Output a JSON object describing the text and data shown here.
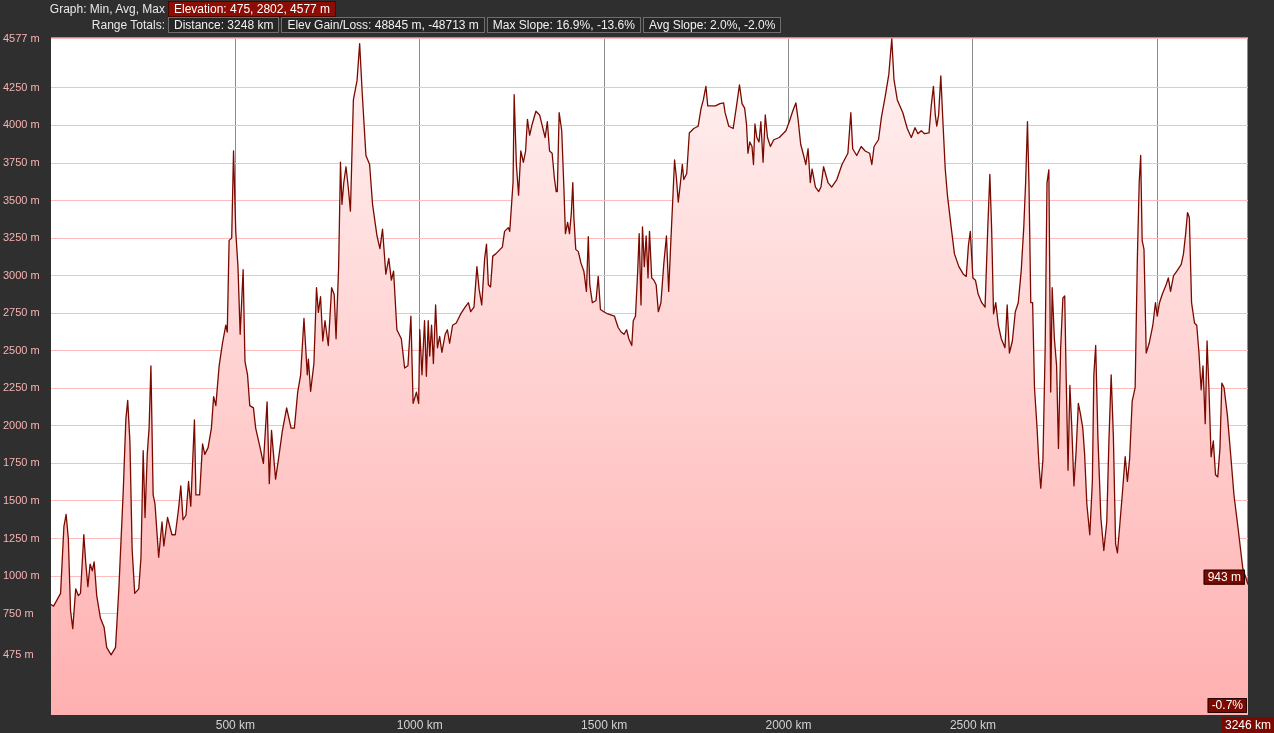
{
  "chart_data": {
    "type": "area",
    "title": "Graph: Min, Avg, Max",
    "subtitle": "Elevation: 475, 2802, 4577 m",
    "annotations": [
      "Range Totals:",
      "Distance: 3248 km",
      "Elev Gain/Loss: 48845 m, -48713 m",
      "Max Slope: 16.9%, -13.6%",
      "Avg Slope: 2.0%, -2.0%",
      {
        "text": "943 m",
        "x": 3246,
        "y": 943
      },
      {
        "text": "-0.7%",
        "x": 3246
      }
    ],
    "color": "#7a0a00",
    "grid": true,
    "xlim": [
      0,
      3246
    ],
    "xticks": [
      {
        "value": 500,
        "label": "500 km"
      },
      {
        "value": 1000,
        "label": "1000 km"
      },
      {
        "value": 1500,
        "label": "1500 km"
      },
      {
        "value": 2000,
        "label": "2000 km"
      },
      {
        "value": 2500,
        "label": "2500 km"
      },
      {
        "value": 3000,
        "label": null
      },
      {
        "value": 3246,
        "label": "3246 km"
      }
    ],
    "ylim": [
      75,
      4585
    ],
    "yticks": [
      {
        "value": 475,
        "label": "475 m"
      },
      {
        "value": 750,
        "label": "750 m"
      },
      {
        "value": 1000,
        "label": "1000 m"
      },
      {
        "value": 1250,
        "label": "1250 m"
      },
      {
        "value": 1500,
        "label": "1500 m"
      },
      {
        "value": 1750,
        "label": "1750 m"
      },
      {
        "value": 2000,
        "label": "2000 m"
      },
      {
        "value": 2250,
        "label": "2250 m"
      },
      {
        "value": 2500,
        "label": "2500 m"
      },
      {
        "value": 2750,
        "label": "2750 m"
      },
      {
        "value": 3000,
        "label": "3000 m"
      },
      {
        "value": 3250,
        "label": "3250 m"
      },
      {
        "value": 3500,
        "label": "3500 m"
      },
      {
        "value": 3750,
        "label": "3750 m"
      },
      {
        "value": 4000,
        "label": "4000 m"
      },
      {
        "value": 4250,
        "label": "4250 m"
      },
      {
        "value": 4577,
        "label": "4577 m"
      }
    ],
    "x": [
      0,
      7,
      26,
      35,
      41,
      47,
      53,
      59,
      67,
      74,
      80,
      89,
      94,
      100,
      106,
      112,
      117,
      124,
      134,
      144,
      151,
      163,
      175,
      184,
      196,
      203,
      208,
      214,
      220,
      227,
      238,
      244,
      250,
      255,
      261,
      266,
      271,
      277,
      282,
      292,
      301,
      306,
      316,
      328,
      337,
      346,
      352,
      358,
      366,
      373,
      379,
      389,
      393,
      403,
      411,
      417,
      426,
      435,
      441,
      447,
      456,
      465,
      474,
      478,
      483,
      490,
      495,
      501,
      507,
      513,
      521,
      526,
      533,
      539,
      549,
      555,
      567,
      576,
      586,
      592,
      598,
      609,
      617,
      627,
      639,
      651,
      660,
      669,
      677,
      686,
      695,
      698,
      704,
      713,
      720,
      725,
      731,
      737,
      743,
      752,
      761,
      768,
      773,
      780,
      785,
      789,
      794,
      800,
      806,
      812,
      820,
      830,
      837,
      844,
      854,
      864,
      872,
      884,
      892,
      899,
      908,
      916,
      923,
      929,
      938,
      950,
      959,
      968,
      976,
      982,
      991,
      997,
      1000,
      1006,
      1013,
      1018,
      1023,
      1027,
      1032,
      1037,
      1043,
      1048,
      1054,
      1060,
      1069,
      1075,
      1081,
      1089,
      1099,
      1111,
      1123,
      1132,
      1138,
      1147,
      1155,
      1161,
      1168,
      1176,
      1181,
      1186,
      1192,
      1198,
      1206,
      1224,
      1230,
      1240,
      1244,
      1249,
      1253,
      1256,
      1262,
      1268,
      1274,
      1281,
      1287,
      1292,
      1298,
      1305,
      1315,
      1325,
      1334,
      1340,
      1346,
      1352,
      1359,
      1365,
      1370,
      1373,
      1378,
      1385,
      1391,
      1395,
      1401,
      1406,
      1411,
      1415,
      1418,
      1423,
      1430,
      1437,
      1445,
      1452,
      1457,
      1461,
      1468,
      1478,
      1484,
      1490,
      1499,
      1510,
      1528,
      1538,
      1546,
      1554,
      1561,
      1567,
      1575,
      1579,
      1585,
      1591,
      1595,
      1600,
      1604,
      1609,
      1614,
      1619,
      1623,
      1629,
      1635,
      1641,
      1647,
      1654,
      1662,
      1669,
      1675,
      1681,
      1685,
      1691,
      1696,
      1701,
      1707,
      1712,
      1716,
      1724,
      1731,
      1743,
      1755,
      1763,
      1769,
      1776,
      1781,
      1790,
      1802,
      1814,
      1824,
      1828,
      1838,
      1850,
      1859,
      1867,
      1874,
      1881,
      1886,
      1890,
      1895,
      1901,
      1905,
      1909,
      1914,
      1920,
      1925,
      1931,
      1937,
      1943,
      1951,
      1960,
      1975,
      1993,
      2002,
      2012,
      2020,
      2026,
      2033,
      2041,
      2047,
      2053,
      2059,
      2064,
      2073,
      2082,
      2088,
      2095,
      2107,
      2117,
      2131,
      2145,
      2161,
      2169,
      2174,
      2185,
      2197,
      2208,
      2220,
      2226,
      2232,
      2244,
      2252,
      2262,
      2272,
      2280,
      2286,
      2295,
      2310,
      2322,
      2333,
      2343,
      2351,
      2360,
      2369,
      2381,
      2387,
      2393,
      2398,
      2402,
      2407,
      2413,
      2419,
      2425,
      2431,
      2441,
      2450,
      2462,
      2474,
      2482,
      2488,
      2493,
      2500,
      2507,
      2514,
      2524,
      2533,
      2540,
      2546,
      2551,
      2556,
      2562,
      2569,
      2577,
      2587,
      2593,
      2599,
      2607,
      2615,
      2623,
      2631,
      2638,
      2643,
      2648,
      2652,
      2657,
      2662,
      2667,
      2674,
      2679,
      2684,
      2690,
      2696,
      2701,
      2706,
      2711,
      2715,
      2721,
      2727,
      2732,
      2738,
      2744,
      2749,
      2753,
      2758,
      2763,
      2768,
      2774,
      2780,
      2786,
      2792,
      2798,
      2803,
      2809,
      2817,
      2824,
      2828,
      2833,
      2839,
      2847,
      2855,
      2863,
      2869,
      2875,
      2881,
      2887,
      2892,
      2899,
      2905,
      2913,
      2919,
      2925,
      2932,
      2940,
      2946,
      2951,
      2955,
      2959,
      2964,
      2970,
      2978,
      2988,
      2995,
      3000,
      3006,
      3014,
      3024,
      3030,
      3036,
      3044,
      3053,
      3065,
      3071,
      3077,
      3082,
      3087,
      3093,
      3101,
      3107,
      3113,
      3119,
      3124,
      3130,
      3135,
      3140,
      3146,
      3152,
      3158,
      3164,
      3170,
      3175,
      3181,
      3190,
      3200,
      3208,
      3220,
      3232,
      3240,
      3246
    ],
    "values": [
      810,
      800,
      885,
      1330,
      1410,
      1250,
      770,
      650,
      915,
      870,
      885,
      1275,
      1095,
      930,
      1080,
      1035,
      1095,
      870,
      720,
      660,
      525,
      475,
      525,
      915,
      1570,
      2045,
      2170,
      1895,
      1180,
      885,
      915,
      1125,
      1835,
      1390,
      1810,
      1985,
      2400,
      1540,
      1480,
      1125,
      1360,
      1200,
      1390,
      1275,
      1275,
      1450,
      1600,
      1375,
      1405,
      1630,
      1465,
      2040,
      1540,
      1540,
      1880,
      1810,
      1855,
      1985,
      2195,
      2135,
      2400,
      2550,
      2670,
      2625,
      3235,
      3250,
      3830,
      3295,
      3060,
      2610,
      3040,
      2430,
      2340,
      2135,
      2120,
      1985,
      1855,
      1750,
      2160,
      1615,
      1970,
      1645,
      1780,
      1960,
      2120,
      1985,
      1985,
      2225,
      2340,
      2715,
      2340,
      2445,
      2230,
      2415,
      2920,
      2755,
      2860,
      2565,
      2700,
      2535,
      2920,
      2875,
      2580,
      3060,
      3755,
      3475,
      3620,
      3725,
      3590,
      3430,
      4170,
      4300,
      4545,
      4215,
      3800,
      3740,
      3475,
      3265,
      3180,
      3310,
      3010,
      3115,
      2970,
      3030,
      2640,
      2580,
      2385,
      2400,
      2730,
      2150,
      2225,
      2150,
      2640,
      2340,
      2700,
      2330,
      2700,
      2465,
      2670,
      2415,
      2805,
      2520,
      2595,
      2490,
      2610,
      2640,
      2550,
      2670,
      2685,
      2745,
      2790,
      2820,
      2760,
      2790,
      3060,
      2910,
      2805,
      3115,
      3210,
      2940,
      2925,
      3130,
      3145,
      3190,
      3295,
      3320,
      3295,
      3475,
      3620,
      4205,
      3740,
      3535,
      3830,
      3755,
      3830,
      4040,
      3935,
      4010,
      4095,
      4070,
      3980,
      3920,
      4025,
      3830,
      3815,
      3650,
      3560,
      3560,
      4085,
      3965,
      3575,
      3280,
      3355,
      3280,
      3415,
      3620,
      3385,
      3175,
      3160,
      3085,
      3030,
      2895,
      3260,
      2940,
      2820,
      2835,
      2995,
      2775,
      2760,
      2745,
      2730,
      2655,
      2625,
      2610,
      2640,
      2580,
      2535,
      2700,
      2730,
      3030,
      3280,
      2805,
      3325,
      3060,
      3265,
      2985,
      3295,
      2985,
      2970,
      2940,
      2760,
      2820,
      3085,
      3265,
      2895,
      3235,
      3445,
      3770,
      3650,
      3490,
      3620,
      3740,
      3640,
      3680,
      3950,
      3980,
      3995,
      4115,
      4170,
      4260,
      4130,
      4130,
      4130,
      4145,
      4150,
      4085,
      3995,
      3980,
      4130,
      4270,
      4145,
      4115,
      4010,
      3815,
      3890,
      3860,
      3740,
      4010,
      3920,
      3890,
      4025,
      3755,
      4070,
      3920,
      3860,
      3905,
      3920,
      3965,
      4025,
      4100,
      4150,
      4040,
      3875,
      3800,
      3740,
      3845,
      3620,
      3710,
      3590,
      3560,
      3590,
      3725,
      3620,
      3590,
      3640,
      3740,
      3815,
      4085,
      3845,
      3800,
      3860,
      3830,
      3815,
      3740,
      3860,
      3905,
      4055,
      4190,
      4340,
      4577,
      4305,
      4170,
      4085,
      3980,
      3920,
      3985,
      3945,
      3965,
      3945,
      3950,
      4130,
      4260,
      4070,
      3995,
      4070,
      4330,
      4010,
      3710,
      3535,
      3325,
      3145,
      3060,
      3010,
      2995,
      3205,
      3295,
      2985,
      2970,
      2880,
      2820,
      2790,
      3295,
      3675,
      3295,
      2745,
      2820,
      2670,
      2580,
      2520,
      2805,
      2485,
      2565,
      2760,
      2820,
      3030,
      3325,
      3620,
      4025,
      3620,
      2820,
      2820,
      2255,
      1985,
      1750,
      1585,
      1780,
      2520,
      3620,
      3705,
      2225,
      2920,
      2580,
      2400,
      1850,
      2520,
      2850,
      2865,
      2315,
      1705,
      2270,
      2000,
      1600,
      1835,
      2150,
      2075,
      1985,
      1810,
      1480,
      1275,
      1630,
      2340,
      2535,
      1925,
      1390,
      1170,
      1360,
      1910,
      2340,
      1925,
      1215,
      1155,
      1360,
      1540,
      1795,
      1630,
      1780,
      2165,
      2255,
      3115,
      3620,
      3800,
      3235,
      3175,
      2485,
      2550,
      2670,
      2820,
      2730,
      2820,
      2880,
      2940,
      2985,
      2895,
      2998,
      3030,
      3075,
      3145,
      3280,
      3420,
      3385,
      2820,
      2685,
      2670,
      2490,
      2240,
      2400,
      2015,
      2565,
      2255,
      1795,
      1900,
      1675,
      1660,
      1850,
      2285,
      2255,
      2075,
      1780,
      1540,
      1300,
      1050,
      990,
      943
    ]
  }
}
